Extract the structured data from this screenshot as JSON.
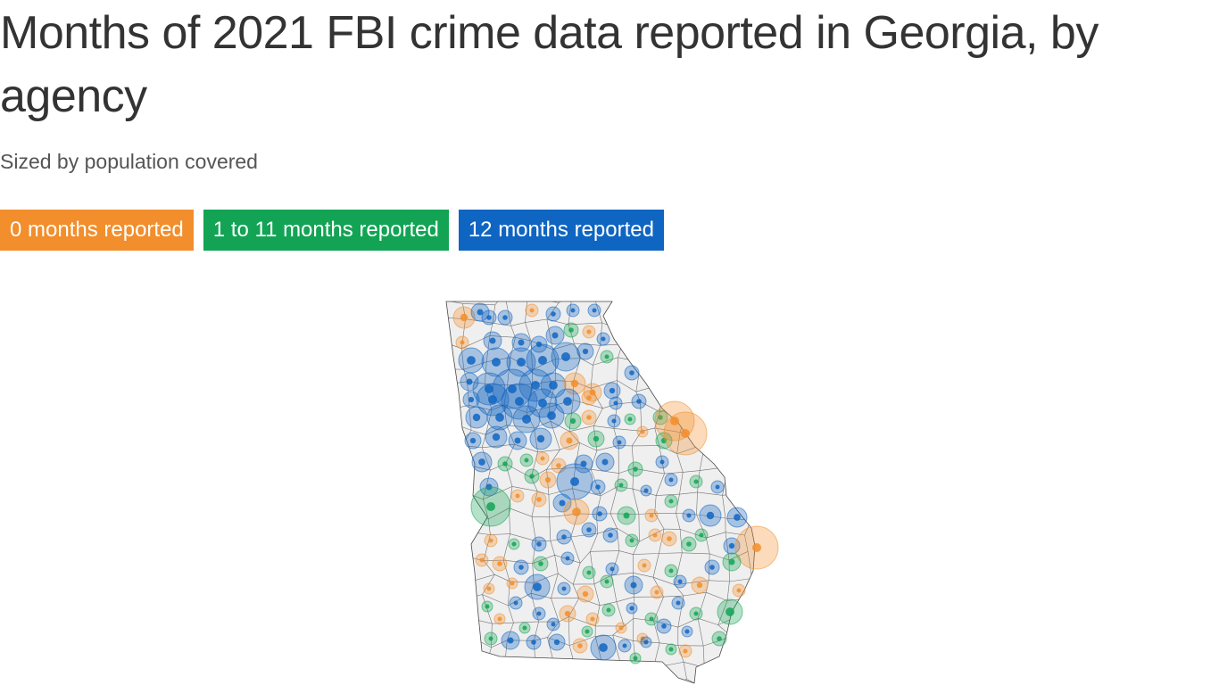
{
  "title": "Months of 2021 FBI crime data reported in Georgia, by agency",
  "subtitle": "Sized by population covered",
  "legend": [
    {
      "label": "0 months reported",
      "color": "#f28e2b",
      "category": "none"
    },
    {
      "label": "1 to 11 months reported",
      "color": "#12a454",
      "category": "partial"
    },
    {
      "label": "12 months reported",
      "color": "#0f65c2",
      "category": "full"
    }
  ],
  "map": {
    "region": "Georgia",
    "basemap_color": "#efefef",
    "boundary_color": "#4a4a4a",
    "layers": [
      "county-boundaries",
      "agency-bubbles"
    ]
  }
}
